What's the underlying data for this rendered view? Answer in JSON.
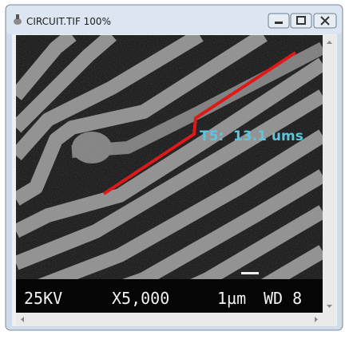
{
  "window": {
    "title": "CIRCUIT.TIF 100%"
  },
  "image": {
    "annotation": "T5:  13.1 ums",
    "info_bar": [
      "25KV",
      "X5,000",
      "1µm",
      "WD 8"
    ]
  }
}
